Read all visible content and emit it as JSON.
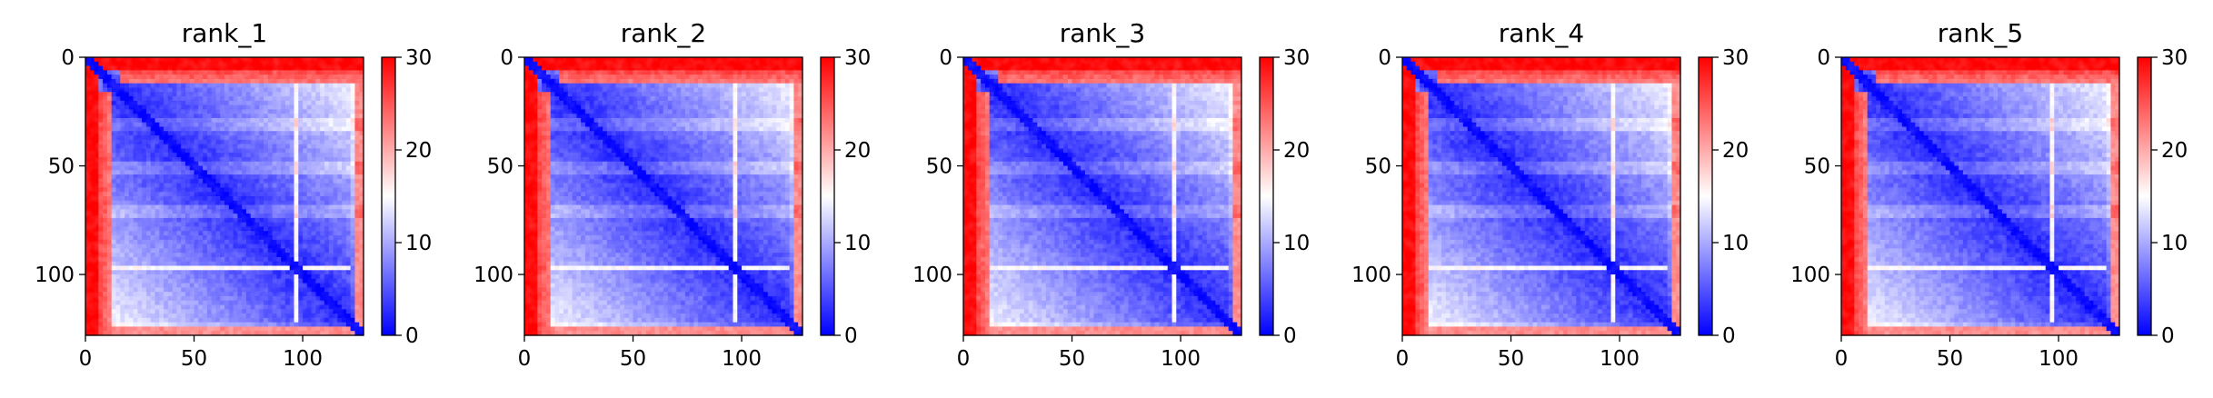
{
  "chart_data": [
    {
      "type": "heatmap",
      "title": "rank_1",
      "xlim": [
        0,
        128
      ],
      "ylim": [
        128,
        0
      ],
      "xticks": [
        0,
        50,
        100
      ],
      "yticks": [
        0,
        50,
        100
      ],
      "colorbar": {
        "range": [
          0,
          30
        ],
        "ticks": [
          0,
          10,
          20,
          30
        ],
        "colormap": "bwr",
        "colors": [
          "#0000ff",
          "#ffffff",
          "#ff0000"
        ]
      }
    },
    {
      "type": "heatmap",
      "title": "rank_2",
      "xlim": [
        0,
        128
      ],
      "ylim": [
        128,
        0
      ],
      "xticks": [
        0,
        50,
        100
      ],
      "yticks": [
        0,
        50,
        100
      ],
      "colorbar": {
        "range": [
          0,
          30
        ],
        "ticks": [
          0,
          10,
          20,
          30
        ],
        "colormap": "bwr",
        "colors": [
          "#0000ff",
          "#ffffff",
          "#ff0000"
        ]
      }
    },
    {
      "type": "heatmap",
      "title": "rank_3",
      "xlim": [
        0,
        128
      ],
      "ylim": [
        128,
        0
      ],
      "xticks": [
        0,
        50,
        100
      ],
      "yticks": [
        0,
        50,
        100
      ],
      "colorbar": {
        "range": [
          0,
          30
        ],
        "ticks": [
          0,
          10,
          20,
          30
        ],
        "colormap": "bwr",
        "colors": [
          "#0000ff",
          "#ffffff",
          "#ff0000"
        ]
      }
    },
    {
      "type": "heatmap",
      "title": "rank_4",
      "xlim": [
        0,
        128
      ],
      "ylim": [
        128,
        0
      ],
      "xticks": [
        0,
        50,
        100
      ],
      "yticks": [
        0,
        50,
        100
      ],
      "colorbar": {
        "range": [
          0,
          30
        ],
        "ticks": [
          0,
          10,
          20,
          30
        ],
        "colormap": "bwr",
        "colors": [
          "#0000ff",
          "#ffffff",
          "#ff0000"
        ]
      }
    },
    {
      "type": "heatmap",
      "title": "rank_5",
      "xlim": [
        0,
        128
      ],
      "ylim": [
        128,
        0
      ],
      "xticks": [
        0,
        50,
        100
      ],
      "yticks": [
        0,
        50,
        100
      ],
      "colorbar": {
        "range": [
          0,
          30
        ],
        "ticks": [
          0,
          10,
          20,
          30
        ],
        "colormap": "bwr",
        "colors": [
          "#0000ff",
          "#ffffff",
          "#ff0000"
        ]
      }
    }
  ]
}
